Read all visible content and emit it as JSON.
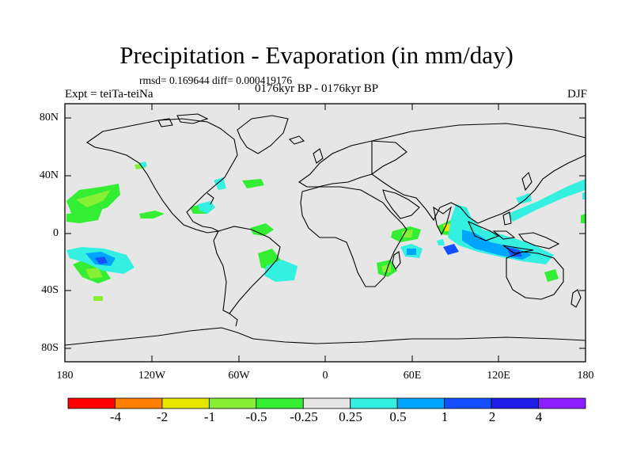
{
  "figure": {
    "title": "Precipitation - Evaporation (in mm/day)",
    "stats": "rmsd= 0.169644 diff= 0.000419176",
    "subtitle": "0176kyr BP - 0176kyr BP",
    "experiment": "Expt = teiTa-teiNa",
    "season": "DJF"
  },
  "axes": {
    "y_labels": [
      "80N",
      "40N",
      "0",
      "40S",
      "80S"
    ],
    "x_labels": [
      "180",
      "120W",
      "60W",
      "0",
      "60E",
      "120E",
      "180"
    ]
  },
  "colorbar": {
    "labels": [
      "-4",
      "-2",
      "-1",
      "-0.5",
      "-0.25",
      "0.25",
      "0.5",
      "1",
      "2",
      "4"
    ],
    "colors": [
      "#ff0000",
      "#ff8000",
      "#e6e600",
      "#88f033",
      "#33ee33",
      "#e6e6e6",
      "#33f0e0",
      "#00a5ff",
      "#1450ff",
      "#1e1ee6",
      "#8c1eff"
    ]
  },
  "colors": {
    "ocean_background": "#e6e6e6",
    "coastline": "#000000"
  }
}
